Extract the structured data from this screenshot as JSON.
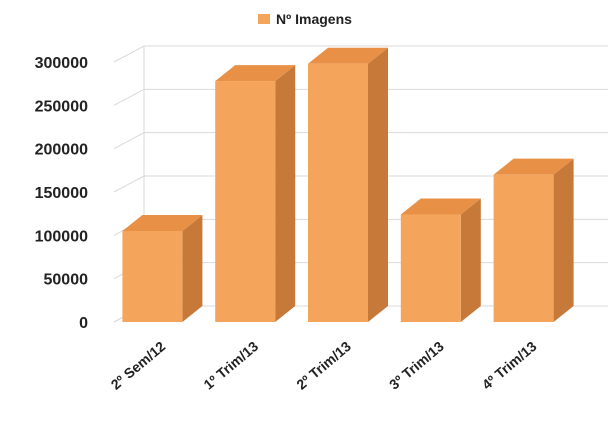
{
  "chart_data": {
    "type": "bar",
    "title": "",
    "xlabel": "",
    "ylabel": "",
    "categories": [
      "2º Sem/12",
      "1º Trim/13",
      "2º Trim/13",
      "3º Trim/13",
      "4º Trim/13"
    ],
    "series": [
      {
        "name": "Nº Imagens",
        "values": [
          105000,
          278000,
          298000,
          124000,
          170000
        ]
      }
    ],
    "ylim": [
      0,
      300000
    ],
    "yticks": [
      "0",
      "50000",
      "100000",
      "150000",
      "200000",
      "250000",
      "300000"
    ],
    "grid": true,
    "legend_position": "top",
    "three_d": true,
    "colors": {
      "front": "#F4A55B",
      "side": "#C7793A",
      "top": "#E89046"
    }
  }
}
